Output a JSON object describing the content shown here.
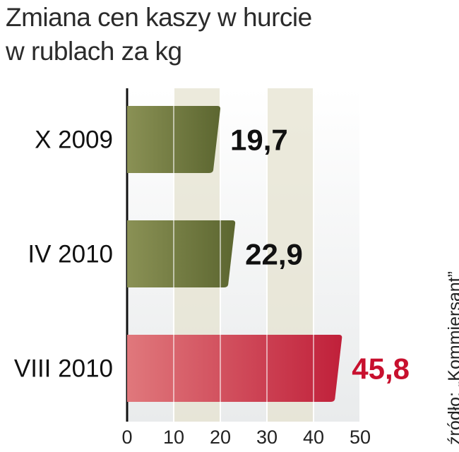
{
  "title_line1": "Zmiana cen kaszy w hurcie",
  "title_line2": "w rublach za kg",
  "source": "źródło: „Kommiersant”",
  "chart_data": {
    "type": "bar",
    "orientation": "horizontal",
    "title": "Zmiana cen kaszy w hurcie w rublach za kg",
    "categories": [
      "X 2009",
      "IV 2010",
      "VIII 2010"
    ],
    "values": [
      19.7,
      22.9,
      45.8
    ],
    "value_labels": [
      "19,7",
      "22,9",
      "45,8"
    ],
    "xlim": [
      0,
      50
    ],
    "xticks": [
      0,
      10,
      20,
      30,
      40,
      50
    ],
    "xtick_labels": [
      "0",
      "10",
      "20",
      "30",
      "40",
      "50"
    ],
    "grid": true,
    "colors": {
      "bar_dark": "#5c6630",
      "bar_light": "#8a9155",
      "highlight_dark": "#c0203a",
      "highlight_light": "#e0787c",
      "highlight_label": "#c8102e",
      "label": "#111111",
      "band": "#e6e3d0",
      "background": "#eeefef"
    }
  }
}
